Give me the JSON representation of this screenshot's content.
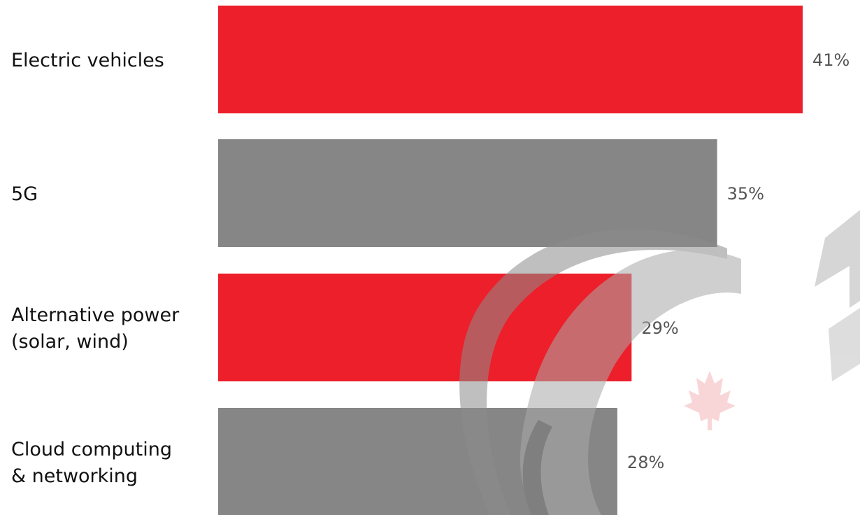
{
  "chart_data": {
    "type": "bar",
    "orientation": "horizontal",
    "categories": [
      [
        "Electric vehicles"
      ],
      [
        "5G"
      ],
      [
        "Alternative power",
        "(solar, wind)"
      ],
      [
        "Cloud computing",
        "& networking"
      ]
    ],
    "values": [
      41,
      35,
      29,
      28
    ],
    "value_labels": [
      "41%",
      "35%",
      "29%",
      "28%"
    ],
    "bar_colors": [
      "#ed1f2a",
      "#868686",
      "#ed1f2a",
      "#868686"
    ],
    "title": "",
    "xlabel": "",
    "ylabel": "",
    "xlim": [
      0,
      41
    ],
    "grid": false,
    "legend": "none"
  },
  "watermark": {
    "text": "CE",
    "arc_color": "#bdbdbd",
    "leaf_color": "#f6c2c4"
  }
}
